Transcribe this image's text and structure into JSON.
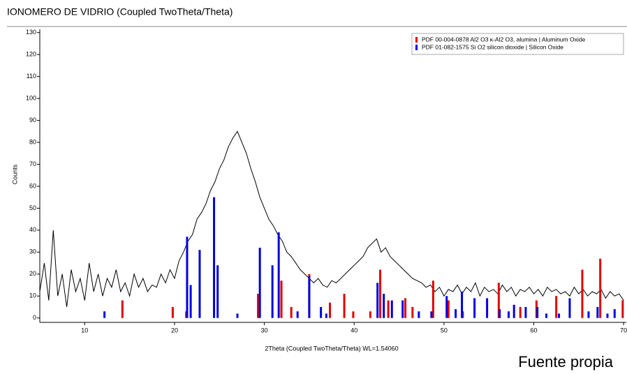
{
  "chart_data": {
    "type": "line",
    "title": "IONOMERO DE VIDRIO (Coupled TwoTheta/Theta)",
    "x_label": "2Theta (Coupled TwoTheta/Theta) WL=1.54060",
    "y_label": "Counts",
    "caption": "Fuente propia",
    "xlim": [
      5,
      70.3
    ],
    "xticks": [
      10,
      20,
      30,
      40,
      50,
      60,
      70
    ],
    "ylim": [
      -2,
      131.5
    ],
    "yticks": [
      0,
      10,
      20,
      30,
      40,
      50,
      60,
      70,
      80,
      90,
      100,
      110,
      120,
      130
    ],
    "legend": "upper right",
    "series": [
      {
        "type": "line",
        "color": "#000000",
        "x": [
          5,
          5.5,
          6,
          6.5,
          7,
          7.5,
          8,
          8.5,
          9,
          9.5,
          10,
          10.5,
          11,
          11.5,
          12,
          12.5,
          13,
          13.5,
          14,
          14.5,
          15,
          15.5,
          16,
          16.5,
          17,
          17.5,
          18,
          18.5,
          19,
          19.5,
          20,
          20.5,
          21,
          21.5,
          22,
          22.5,
          23,
          23.5,
          24,
          24.5,
          25,
          25.5,
          26,
          26.5,
          27,
          27.5,
          28,
          28.5,
          29,
          29.5,
          30,
          30.5,
          31,
          31.5,
          32,
          32.5,
          33,
          33.5,
          34,
          34.5,
          35,
          35.5,
          36,
          36.5,
          37,
          37.5,
          38,
          38.5,
          39,
          39.5,
          40,
          40.5,
          41,
          41.5,
          42,
          42.5,
          43,
          43.5,
          44,
          44.5,
          45,
          45.5,
          46,
          46.5,
          47,
          47.5,
          48,
          48.5,
          49,
          49.5,
          50,
          50.5,
          51,
          51.5,
          52,
          52.5,
          53,
          53.5,
          54,
          54.5,
          55,
          55.5,
          56,
          56.5,
          57,
          57.5,
          58,
          58.5,
          59,
          59.5,
          60,
          60.5,
          61,
          61.5,
          62,
          62.5,
          63,
          63.5,
          64,
          64.5,
          65,
          65.5,
          66,
          66.5,
          67,
          67.5,
          68,
          68.5,
          69,
          69.5,
          70
        ],
        "values": [
          12,
          25,
          8,
          40,
          10,
          20,
          5,
          22,
          12,
          18,
          8,
          25,
          12,
          20,
          10,
          18,
          14,
          22,
          12,
          16,
          10,
          20,
          14,
          18,
          12,
          15,
          14,
          20,
          16,
          22,
          18,
          26,
          30,
          35,
          38,
          45,
          48,
          52,
          58,
          62,
          68,
          72,
          78,
          82,
          85,
          80,
          75,
          68,
          62,
          55,
          50,
          45,
          42,
          38,
          35,
          30,
          28,
          25,
          22,
          20,
          18,
          16,
          18,
          15,
          14,
          17,
          16,
          18,
          20,
          22,
          24,
          26,
          28,
          32,
          34,
          36,
          30,
          32,
          28,
          26,
          24,
          22,
          20,
          18,
          17,
          16,
          14,
          15,
          12,
          14,
          10,
          13,
          12,
          15,
          11,
          14,
          12,
          16,
          10,
          14,
          12,
          13,
          11,
          15,
          12,
          14,
          10,
          13,
          12,
          14,
          11,
          13,
          10,
          14,
          12,
          13,
          11,
          12,
          10,
          14,
          11,
          13,
          10,
          12,
          11,
          13,
          9,
          12,
          10,
          11,
          8
        ]
      },
      {
        "type": "bar",
        "name": "PDF 00-004-0878 Al2 O3 κ-Al2 O3, alumina | Aluminum Oxide",
        "color": "#e00000",
        "x": [
          14.2,
          19.8,
          21.3,
          29.3,
          31.9,
          33.0,
          35.0,
          37.3,
          38.9,
          39.9,
          41.8,
          42.9,
          43.8,
          45.7,
          46.5,
          48.8,
          50.5,
          52.1,
          56.1,
          58.5,
          60.3,
          62.5,
          65.4,
          67.4,
          69.9
        ],
        "values": [
          8,
          5,
          3,
          11,
          17,
          5,
          20,
          7,
          11,
          3,
          3,
          22,
          8,
          9,
          5,
          17,
          8,
          3,
          16,
          5,
          8,
          10,
          22,
          27,
          8
        ]
      },
      {
        "type": "bar",
        "name": "PDF 01-082-1575 Si O2 silicon dioxide | Silicon Oxide",
        "color": "#0000e0",
        "x": [
          12.2,
          21.4,
          21.8,
          22.8,
          24.4,
          24.8,
          27.0,
          29.5,
          30.9,
          31.6,
          33.7,
          35.0,
          36.3,
          36.9,
          42.6,
          43.3,
          44.2,
          45.4,
          47.2,
          48.6,
          50.3,
          51.3,
          52.0,
          53.4,
          54.8,
          56.2,
          57.2,
          57.8,
          59.1,
          60.4,
          61.4,
          62.8,
          64.0,
          66.1,
          67.1,
          68.2,
          69.0
        ],
        "values": [
          3,
          37,
          15,
          31,
          55,
          24,
          2,
          32,
          24,
          39,
          3,
          19,
          5,
          2,
          16,
          11,
          8,
          8,
          3,
          3,
          10,
          4,
          12,
          9,
          9,
          4,
          3,
          6,
          5,
          5,
          2,
          2,
          9,
          3,
          5,
          2,
          4
        ]
      }
    ]
  }
}
